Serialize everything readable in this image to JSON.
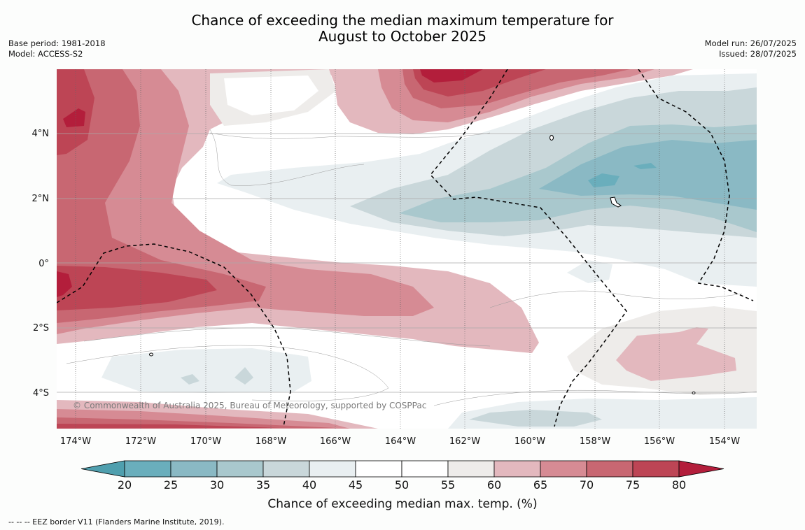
{
  "title": {
    "line1": "Chance of exceeding the median maximum temperature for",
    "line2": "August to October 2025"
  },
  "info_left": {
    "base_period": "Base period: 1981-2018",
    "model": "Model: ACCESS-S2"
  },
  "info_right": {
    "model_run": "Model run: 26/07/2025",
    "issued": "Issued: 28/07/2025"
  },
  "map": {
    "lon_labels": [
      "174°W",
      "172°W",
      "170°W",
      "168°W",
      "166°W",
      "164°W",
      "162°W",
      "160°W",
      "158°W",
      "156°W",
      "154°W"
    ],
    "lat_labels": [
      "4°N",
      "2°N",
      "0°",
      "2°S",
      "4°S"
    ],
    "copyright": "© Commonwealth of Australia 2025, Bureau of Meteorology, supported by COSPPac"
  },
  "colorbar": {
    "ticks": [
      "20",
      "25",
      "30",
      "35",
      "40",
      "45",
      "50",
      "55",
      "60",
      "65",
      "70",
      "75",
      "80"
    ],
    "colors": [
      "#4f9fae",
      "#6aaebc",
      "#8ab9c4",
      "#a9c8cd",
      "#c9d7da",
      "#e9eff1",
      "#ffffff",
      "#ffffff",
      "#eeecea",
      "#e3b8be",
      "#d68b94",
      "#c86772",
      "#bd4555",
      "#b31e3b"
    ],
    "title": "Chance of exceeding median max. temp. (%)"
  },
  "footnote": "--  --  -- EEZ border V11 (Flanders Marine Institute, 2019).",
  "colors": {
    "blue_deep": "#6aaebc",
    "blue_mid": "#8ab9c4",
    "blue_light": "#a9c8cd",
    "blue_pale": "#c9d7da",
    "blue_faint": "#e9eff1",
    "neutral": "#eeecea",
    "red_faint": "#e3b8be",
    "red_light": "#d68b94",
    "red_mid": "#c86772",
    "red_deep": "#bd4555",
    "red_max": "#b31e3b"
  }
}
